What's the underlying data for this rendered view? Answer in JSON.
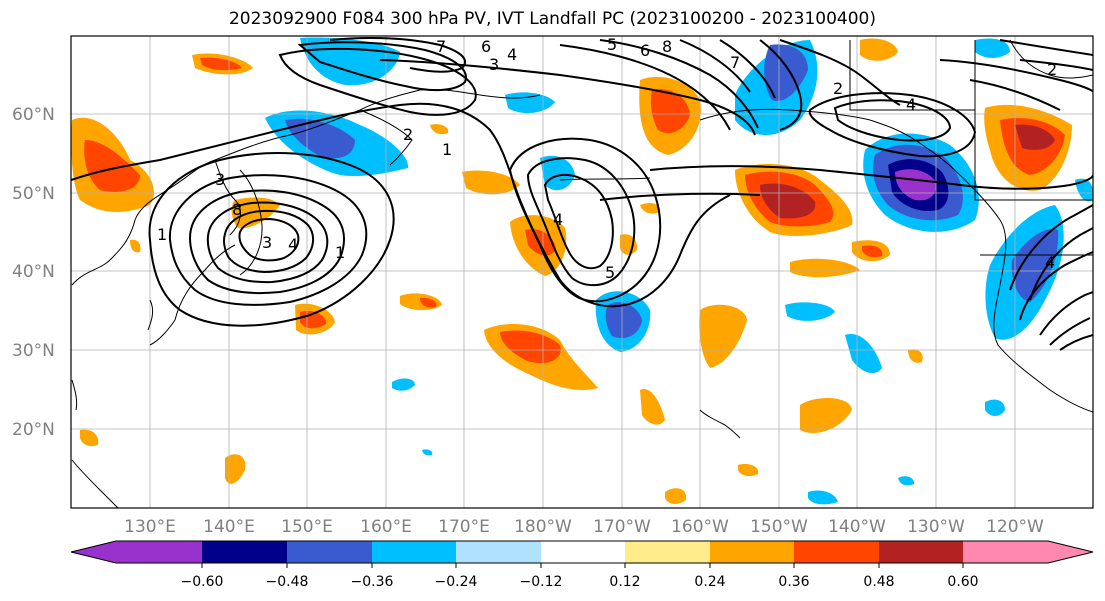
{
  "title": "2023092900 F084 300 hPa PV, IVT Landfall PC (2023100200 - 2023100400)",
  "map": {
    "lat_labels": [
      "60°N",
      "50°N",
      "40°N",
      "30°N",
      "20°N"
    ],
    "lon_labels": [
      "130°E",
      "140°E",
      "150°E",
      "160°E",
      "170°E",
      "180°W",
      "170°W",
      "160°W",
      "150°W",
      "140°W",
      "130°W",
      "120°W"
    ],
    "contour_labels": [
      "7",
      "6",
      "3",
      "4",
      "5",
      "6",
      "8",
      "7",
      "2",
      "2",
      "4",
      "1",
      "2",
      "4",
      "3",
      "1",
      "8",
      "4",
      "3",
      "1",
      "5",
      "4"
    ]
  },
  "colorbar": {
    "colors": [
      "#9932cc",
      "#00008b",
      "#3a5bcf",
      "#00bfff",
      "#b0e2ff",
      "#ffffff",
      "#ffec8b",
      "#ffa500",
      "#ff4500",
      "#b22222",
      "#ff88b0"
    ],
    "tick_labels": [
      "−0.60",
      "−0.48",
      "−0.36",
      "−0.24",
      "−0.12",
      "0.12",
      "0.24",
      "0.36",
      "0.48",
      "0.60"
    ]
  }
}
